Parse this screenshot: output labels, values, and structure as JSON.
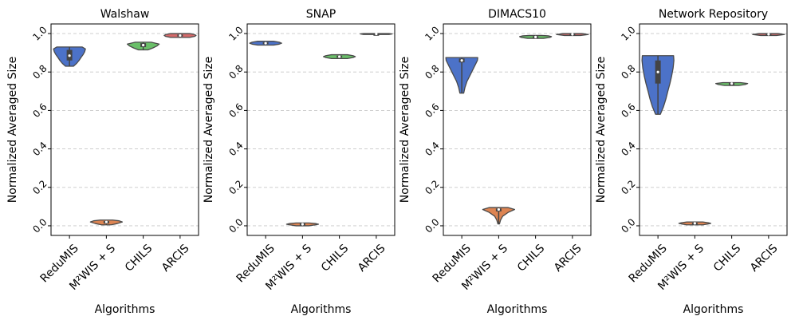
{
  "chart_data": [
    {
      "type": "violin",
      "title": "Walshaw",
      "xlabel": "Algorithms",
      "ylabel": "Normalized Averaged Size",
      "ylim": [
        -0.05,
        1.05
      ],
      "yticks": [
        "0.0",
        "0.2",
        "0.4",
        "0.6",
        "0.8",
        "1.0"
      ],
      "grid": "y-dashed",
      "categories": [
        "ReduMIS",
        "M²WIS + S",
        "CHILS",
        "ARCIS"
      ],
      "series": [
        {
          "name": "ReduMIS",
          "color": "#4c72c8",
          "min": 0.83,
          "max": 0.93,
          "q1": 0.86,
          "median": 0.885,
          "q3": 0.915,
          "profile": [
            [
              0.83,
              0.25
            ],
            [
              0.845,
              0.45
            ],
            [
              0.86,
              0.6
            ],
            [
              0.875,
              0.72
            ],
            [
              0.89,
              0.85
            ],
            [
              0.905,
              0.95
            ],
            [
              0.92,
              1.0
            ],
            [
              0.93,
              0.8
            ]
          ]
        },
        {
          "name": "M²WIS + S",
          "color": "#dd8452",
          "min": 0.005,
          "max": 0.03,
          "q1": 0.012,
          "median": 0.02,
          "q3": 0.025,
          "profile": [
            [
              0.005,
              0.3
            ],
            [
              0.012,
              0.7
            ],
            [
              0.02,
              1.0
            ],
            [
              0.026,
              0.8
            ],
            [
              0.03,
              0.4
            ]
          ]
        },
        {
          "name": "CHILS",
          "color": "#6abf69",
          "min": 0.915,
          "max": 0.955,
          "q1": 0.93,
          "median": 0.94,
          "q3": 0.95,
          "profile": [
            [
              0.915,
              0.3
            ],
            [
              0.925,
              0.6
            ],
            [
              0.935,
              0.85
            ],
            [
              0.945,
              1.0
            ],
            [
              0.955,
              0.5
            ]
          ]
        },
        {
          "name": "ARCIS",
          "color": "#d46a6a",
          "min": 0.98,
          "max": 1.0,
          "q1": 0.985,
          "median": 0.99,
          "q3": 0.995,
          "profile": [
            [
              0.98,
              0.6
            ],
            [
              0.985,
              0.9
            ],
            [
              0.99,
              1.0
            ],
            [
              0.995,
              0.9
            ],
            [
              1.0,
              0.6
            ]
          ]
        }
      ]
    },
    {
      "type": "violin",
      "title": "SNAP",
      "xlabel": "Algorithms",
      "ylabel": "Normalized Averaged Size",
      "ylim": [
        -0.05,
        1.05
      ],
      "yticks": [
        "0.0",
        "0.2",
        "0.4",
        "0.6",
        "0.8",
        "1.0"
      ],
      "grid": "y-dashed",
      "categories": [
        "ReduMIS",
        "M²WIS + S",
        "CHILS",
        "ARCIS"
      ],
      "series": [
        {
          "name": "ReduMIS",
          "color": "#4c72c8",
          "min": 0.94,
          "max": 0.96,
          "q1": 0.945,
          "median": 0.95,
          "q3": 0.955,
          "profile": [
            [
              0.94,
              0.5
            ],
            [
              0.945,
              0.85
            ],
            [
              0.95,
              1.0
            ],
            [
              0.955,
              0.85
            ],
            [
              0.96,
              0.5
            ]
          ]
        },
        {
          "name": "M²WIS + S",
          "color": "#dd8452",
          "min": 0.0,
          "max": 0.015,
          "q1": 0.005,
          "median": 0.008,
          "q3": 0.012,
          "profile": [
            [
              0.0,
              0.4
            ],
            [
              0.005,
              0.8
            ],
            [
              0.008,
              1.0
            ],
            [
              0.012,
              0.8
            ],
            [
              0.015,
              0.4
            ]
          ]
        },
        {
          "name": "CHILS",
          "color": "#6abf69",
          "min": 0.87,
          "max": 0.89,
          "q1": 0.875,
          "median": 0.88,
          "q3": 0.885,
          "profile": [
            [
              0.87,
              0.5
            ],
            [
              0.875,
              0.85
            ],
            [
              0.88,
              1.0
            ],
            [
              0.885,
              0.85
            ],
            [
              0.89,
              0.5
            ]
          ]
        },
        {
          "name": "ARCIS",
          "color": "#d46a6a",
          "min": 0.995,
          "max": 1.0,
          "q1": 0.996,
          "median": 0.998,
          "q3": 0.999,
          "profile": [
            [
              0.995,
              0.8
            ],
            [
              0.998,
              1.0
            ],
            [
              1.0,
              0.8
            ]
          ]
        }
      ]
    },
    {
      "type": "violin",
      "title": "DIMACS10",
      "xlabel": "Algorithms",
      "ylabel": "Normalized Averaged Size",
      "ylim": [
        -0.05,
        1.05
      ],
      "yticks": [
        "0.0",
        "0.2",
        "0.4",
        "0.6",
        "0.8",
        "1.0"
      ],
      "grid": "y-dashed",
      "categories": [
        "ReduMIS",
        "M²WIS + S",
        "CHILS",
        "ARCIS"
      ],
      "series": [
        {
          "name": "ReduMIS",
          "color": "#4c72c8",
          "min": 0.69,
          "max": 0.875,
          "q1": 0.85,
          "median": 0.86,
          "q3": 0.87,
          "profile": [
            [
              0.69,
              0.12
            ],
            [
              0.72,
              0.2
            ],
            [
              0.75,
              0.32
            ],
            [
              0.78,
              0.5
            ],
            [
              0.81,
              0.68
            ],
            [
              0.84,
              0.86
            ],
            [
              0.86,
              0.98
            ],
            [
              0.875,
              1.0
            ]
          ]
        },
        {
          "name": "M²WIS + S",
          "color": "#dd8452",
          "min": 0.01,
          "max": 0.095,
          "q1": 0.075,
          "median": 0.085,
          "q3": 0.09,
          "profile": [
            [
              0.01,
              0.05
            ],
            [
              0.03,
              0.12
            ],
            [
              0.05,
              0.25
            ],
            [
              0.07,
              0.6
            ],
            [
              0.085,
              1.0
            ],
            [
              0.095,
              0.6
            ]
          ]
        },
        {
          "name": "CHILS",
          "color": "#6abf69",
          "min": 0.975,
          "max": 0.99,
          "q1": 0.978,
          "median": 0.982,
          "q3": 0.986,
          "profile": [
            [
              0.975,
              0.5
            ],
            [
              0.98,
              0.9
            ],
            [
              0.984,
              1.0
            ],
            [
              0.988,
              0.8
            ],
            [
              0.99,
              0.4
            ]
          ]
        },
        {
          "name": "ARCIS",
          "color": "#d46a6a",
          "min": 0.99,
          "max": 1.0,
          "q1": 0.993,
          "median": 0.996,
          "q3": 0.999,
          "profile": [
            [
              0.99,
              0.5
            ],
            [
              0.995,
              1.0
            ],
            [
              1.0,
              0.6
            ]
          ]
        }
      ]
    },
    {
      "type": "violin",
      "title": "Network Repository",
      "xlabel": "Algorithms",
      "ylabel": "Normalized Averaged Size",
      "ylim": [
        -0.05,
        1.05
      ],
      "yticks": [
        "0.0",
        "0.2",
        "0.4",
        "0.6",
        "0.8",
        "1.0"
      ],
      "grid": "y-dashed",
      "categories": [
        "ReduMIS",
        "M²WIS + S",
        "CHILS",
        "ARCIS"
      ],
      "series": [
        {
          "name": "ReduMIS",
          "color": "#4c72c8",
          "min": 0.58,
          "max": 0.885,
          "q1": 0.74,
          "median": 0.8,
          "q3": 0.86,
          "profile": [
            [
              0.58,
              0.15
            ],
            [
              0.62,
              0.35
            ],
            [
              0.66,
              0.5
            ],
            [
              0.7,
              0.62
            ],
            [
              0.74,
              0.75
            ],
            [
              0.78,
              0.86
            ],
            [
              0.82,
              0.95
            ],
            [
              0.86,
              1.0
            ],
            [
              0.885,
              0.98
            ]
          ]
        },
        {
          "name": "M²WIS + S",
          "color": "#dd8452",
          "min": 0.005,
          "max": 0.02,
          "q1": 0.01,
          "median": 0.013,
          "q3": 0.016,
          "profile": [
            [
              0.005,
              0.5
            ],
            [
              0.01,
              0.85
            ],
            [
              0.013,
              1.0
            ],
            [
              0.016,
              0.85
            ],
            [
              0.02,
              0.5
            ]
          ]
        },
        {
          "name": "CHILS",
          "color": "#6abf69",
          "min": 0.73,
          "max": 0.745,
          "q1": 0.735,
          "median": 0.74,
          "q3": 0.743,
          "profile": [
            [
              0.73,
              0.45
            ],
            [
              0.735,
              0.85
            ],
            [
              0.74,
              1.0
            ],
            [
              0.745,
              0.55
            ]
          ]
        },
        {
          "name": "ARCIS",
          "color": "#d46a6a",
          "min": 0.99,
          "max": 1.0,
          "q1": 0.993,
          "median": 0.996,
          "q3": 0.999,
          "profile": [
            [
              0.99,
              0.5
            ],
            [
              0.995,
              1.0
            ],
            [
              1.0,
              0.6
            ]
          ]
        }
      ]
    }
  ]
}
